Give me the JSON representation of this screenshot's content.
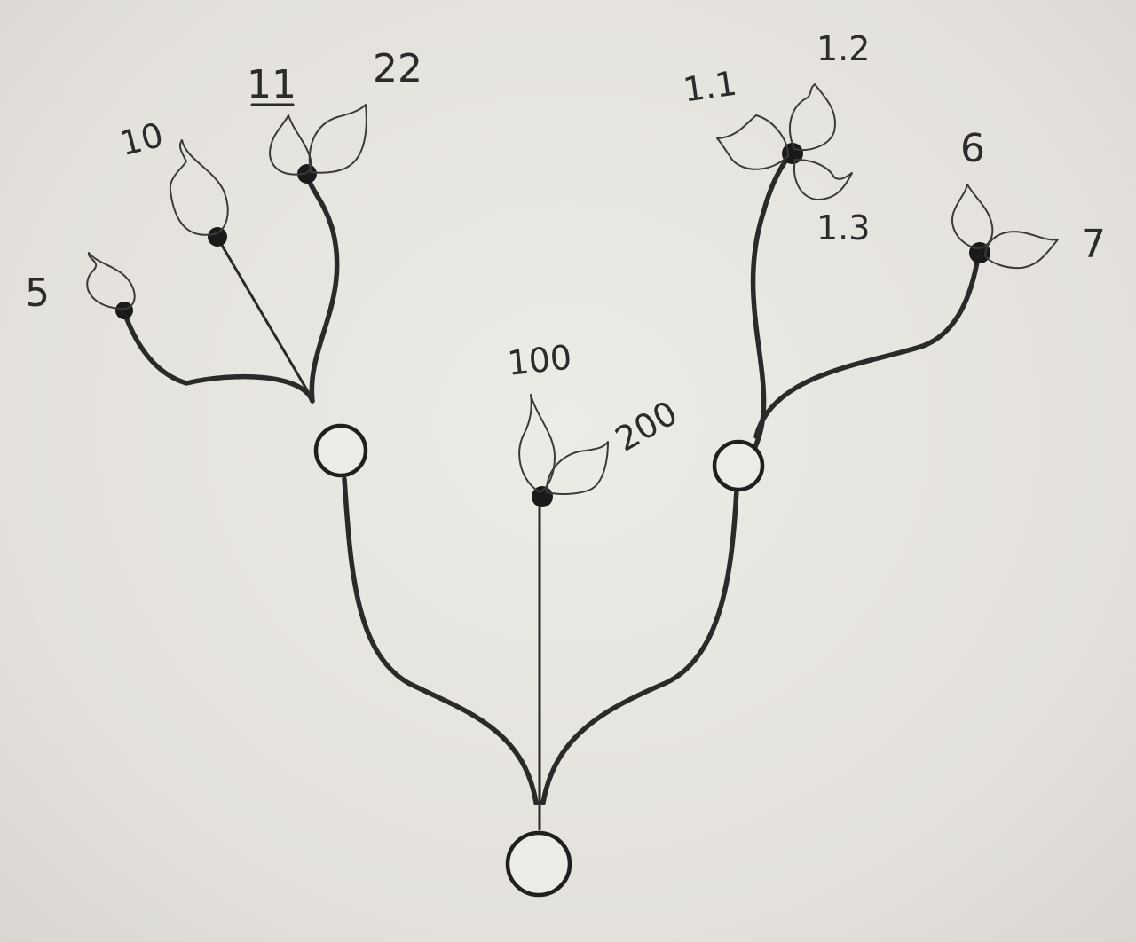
{
  "diagram": {
    "labels": {
      "leaf_5": "5",
      "leaf_10": "10",
      "leaf_11": "11",
      "leaf_22": "22",
      "leaf_100": "100",
      "leaf_200": "200",
      "leaf_1_1": "1.1",
      "leaf_1_2": "1.2",
      "leaf_1_3": "1.3",
      "leaf_6": "6",
      "leaf_7": "7"
    },
    "colors": {
      "ink": "#2a2a2a",
      "paper": "#e6e3de"
    }
  }
}
